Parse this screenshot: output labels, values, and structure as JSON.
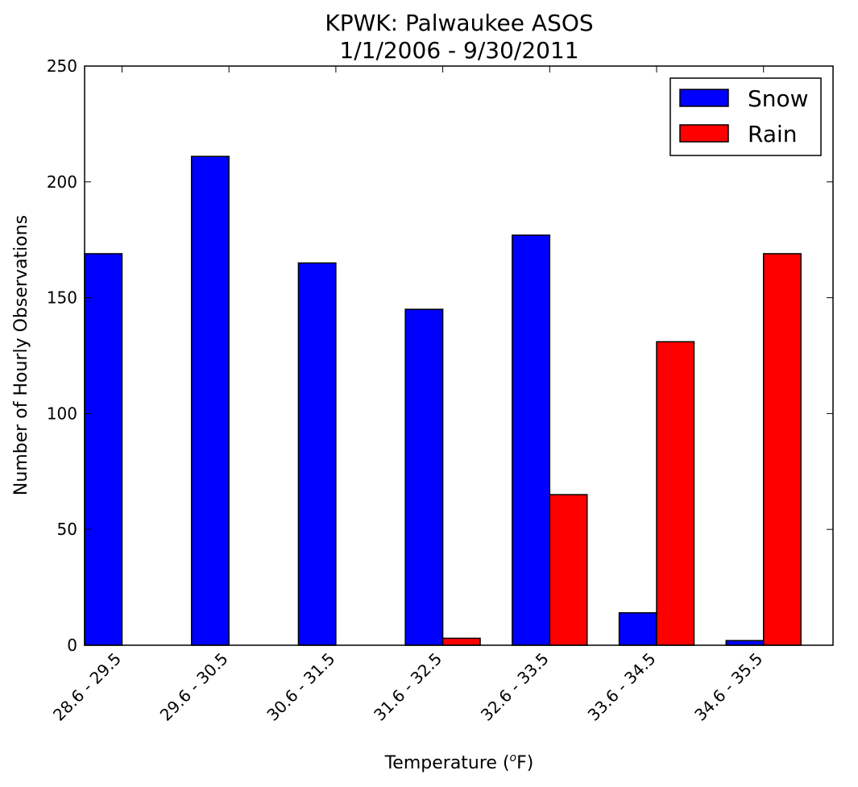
{
  "chart_data": {
    "type": "bar",
    "title": "KPWK: Palwaukee ASOS",
    "subtitle": "1/1/2006 - 9/30/2011",
    "xlabel": "Temperature (",
    "xlabel_sup": "o",
    "xlabel_unit": "F)",
    "ylabel": "Number of Hourly Observations",
    "categories": [
      "28.6 - 29.5",
      "29.6 - 30.5",
      "30.6 - 31.5",
      "31.6 - 32.5",
      "32.6 - 33.5",
      "33.6 - 34.5",
      "34.6 - 35.5"
    ],
    "series": [
      {
        "name": "Snow",
        "color": "#0000ff",
        "values": [
          169,
          211,
          165,
          145,
          177,
          14,
          2
        ]
      },
      {
        "name": "Rain",
        "color": "#ff0000",
        "values": [
          0,
          0,
          0,
          3,
          65,
          131,
          169
        ]
      }
    ],
    "ylim": [
      0,
      250
    ],
    "yticks": [
      0,
      50,
      100,
      150,
      200,
      250
    ],
    "grid": false,
    "legend_position": "top-right"
  }
}
